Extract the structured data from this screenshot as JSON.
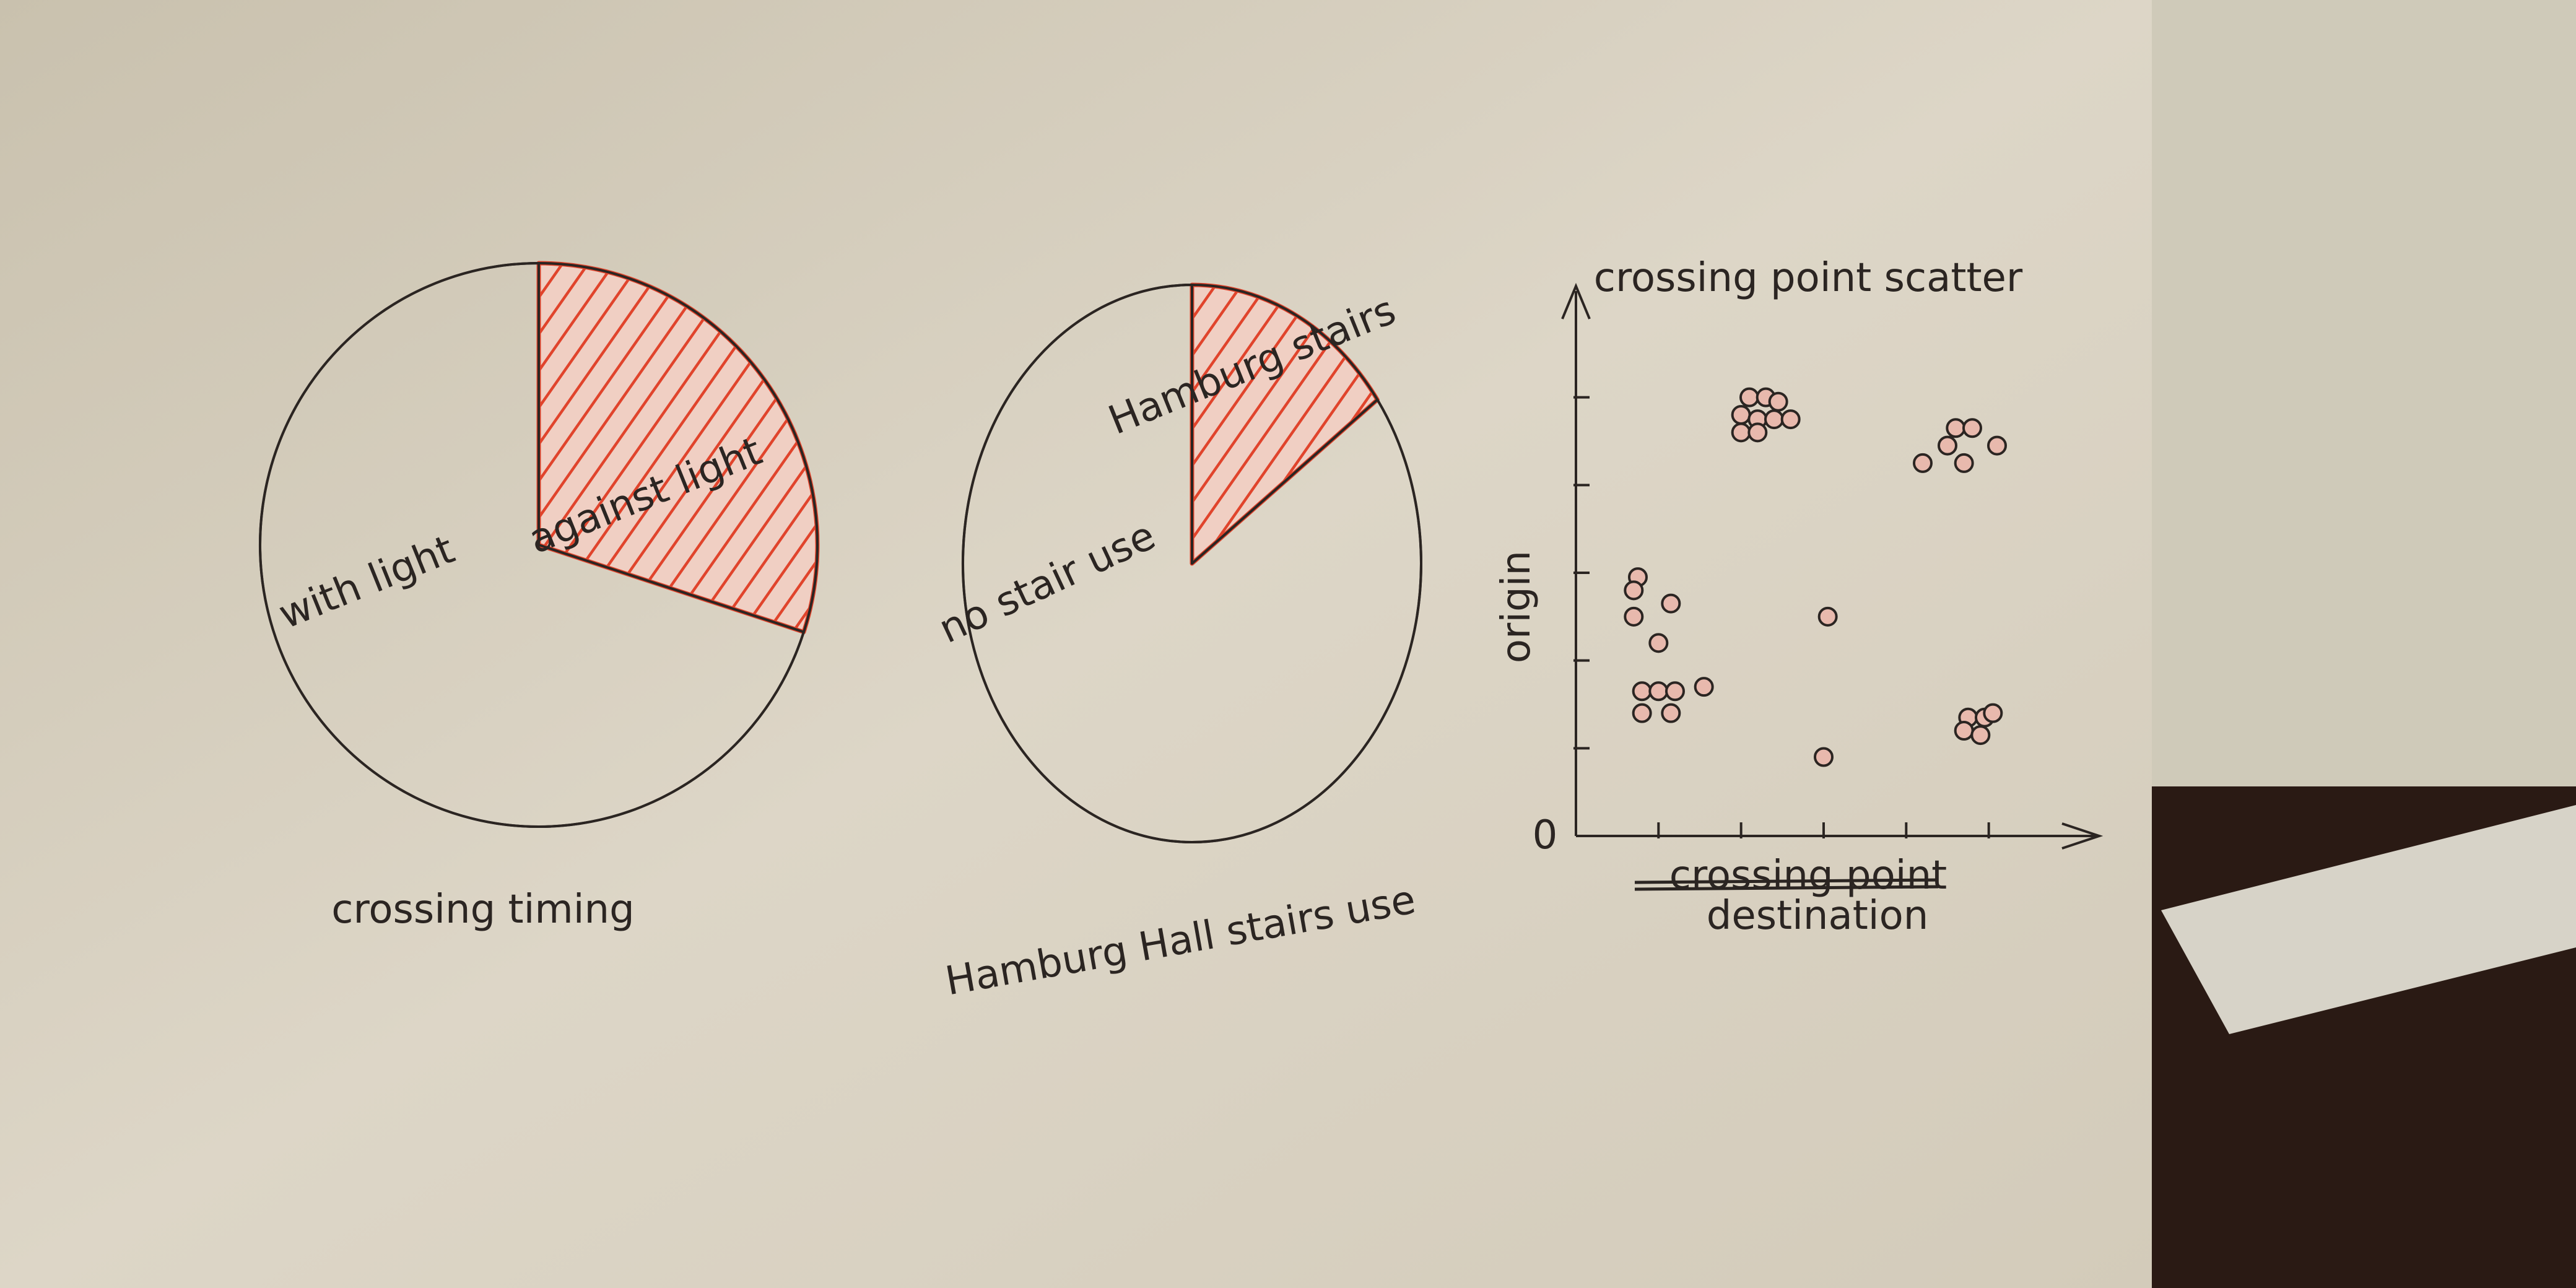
{
  "colors": {
    "paper": "#d9d2c2",
    "ink": "#2b2522",
    "accent": "#e0442c",
    "back_paper": "#cfcab9",
    "floor": "#2a1a14"
  },
  "chart_data": [
    {
      "type": "pie",
      "title": "crossing timing",
      "slices": [
        {
          "label": "with light",
          "value": 70,
          "hatched": false
        },
        {
          "label": "against light",
          "value": 30,
          "hatched": true
        }
      ]
    },
    {
      "type": "pie",
      "title": "Hamburg Hall stairs use",
      "slices": [
        {
          "label": "no stair use",
          "value": 85,
          "hatched": false
        },
        {
          "label": "Hamburg stairs",
          "value": 15,
          "hatched": true
        }
      ]
    },
    {
      "type": "scatter",
      "title": "crossing point scatter",
      "xlabel_struck": "crossing point",
      "xlabel": "destination",
      "ylabel": "origin",
      "origin_label": "0",
      "xlim": [
        0,
        6
      ],
      "ylim": [
        0,
        6
      ],
      "x_ticks": [
        1,
        2,
        3,
        4,
        5
      ],
      "y_ticks": [
        1,
        2,
        3,
        4,
        5
      ],
      "grid": false,
      "points": [
        {
          "x": 2.1,
          "y": 5.0
        },
        {
          "x": 2.3,
          "y": 5.0
        },
        {
          "x": 2.45,
          "y": 4.95
        },
        {
          "x": 2.0,
          "y": 4.8
        },
        {
          "x": 2.2,
          "y": 4.75
        },
        {
          "x": 2.4,
          "y": 4.75
        },
        {
          "x": 2.6,
          "y": 4.75
        },
        {
          "x": 2.0,
          "y": 4.6
        },
        {
          "x": 2.2,
          "y": 4.6
        },
        {
          "x": 4.6,
          "y": 4.65
        },
        {
          "x": 4.8,
          "y": 4.65
        },
        {
          "x": 4.5,
          "y": 4.45
        },
        {
          "x": 5.1,
          "y": 4.45
        },
        {
          "x": 4.2,
          "y": 4.25
        },
        {
          "x": 4.7,
          "y": 4.25
        },
        {
          "x": 0.75,
          "y": 2.95
        },
        {
          "x": 0.7,
          "y": 2.8
        },
        {
          "x": 1.15,
          "y": 2.65
        },
        {
          "x": 0.7,
          "y": 2.5
        },
        {
          "x": 1.0,
          "y": 2.2
        },
        {
          "x": 1.55,
          "y": 1.7
        },
        {
          "x": 0.8,
          "y": 1.65
        },
        {
          "x": 1.0,
          "y": 1.65
        },
        {
          "x": 1.2,
          "y": 1.65
        },
        {
          "x": 0.8,
          "y": 1.4
        },
        {
          "x": 1.15,
          "y": 1.4
        },
        {
          "x": 3.05,
          "y": 2.5
        },
        {
          "x": 3.0,
          "y": 0.9
        },
        {
          "x": 4.75,
          "y": 1.35
        },
        {
          "x": 4.95,
          "y": 1.35
        },
        {
          "x": 5.05,
          "y": 1.4
        },
        {
          "x": 4.7,
          "y": 1.2
        },
        {
          "x": 4.9,
          "y": 1.15
        }
      ]
    }
  ]
}
